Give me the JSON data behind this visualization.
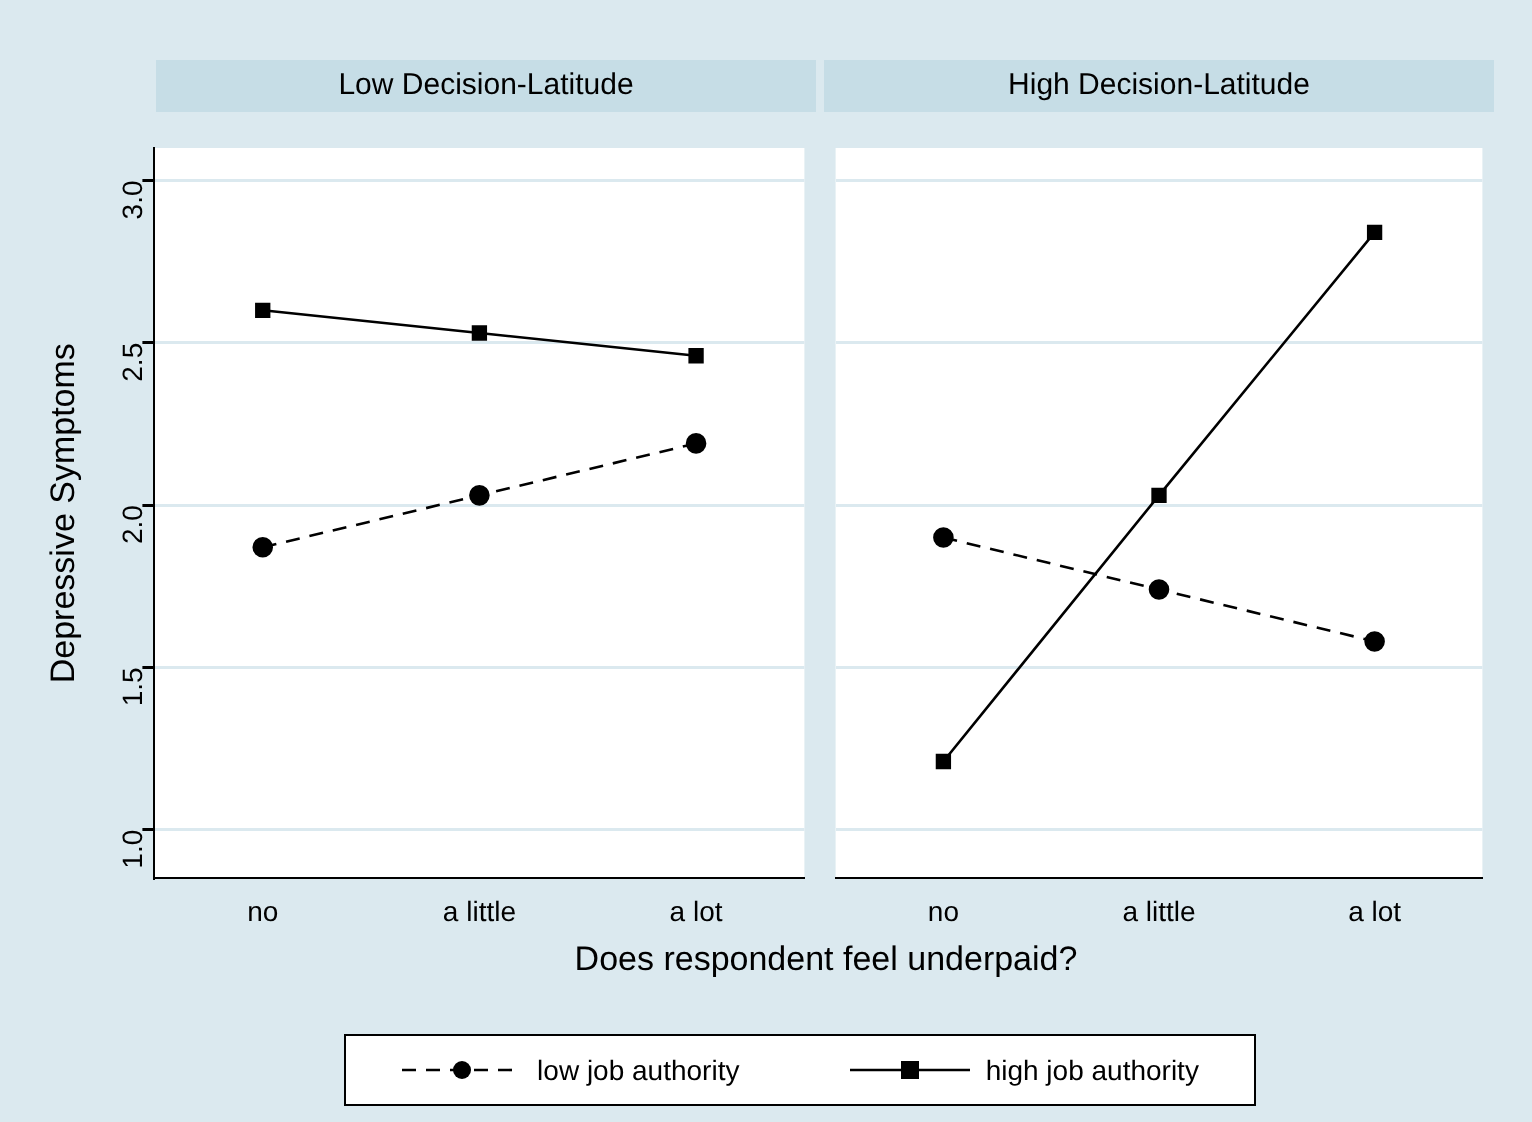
{
  "chart_data": [
    {
      "type": "line",
      "title": "Low Decision-Latitude",
      "xlabel": "Does respondent feel underpaid?",
      "ylabel": "Depressive Symptoms",
      "categories": [
        "no",
        "a little",
        "a lot"
      ],
      "series": [
        {
          "name": "low job authority",
          "color": "#000000",
          "marker": "circle",
          "line_style": "dashed",
          "values": [
            1.87,
            2.03,
            2.19
          ]
        },
        {
          "name": "high job authority",
          "color": "#000000",
          "marker": "square",
          "line_style": "solid",
          "values": [
            2.6,
            2.53,
            2.46
          ]
        }
      ],
      "ylim": [
        0.85,
        3.1
      ],
      "yticks": [
        {
          "value": 1,
          "label": "1.0"
        },
        {
          "value": 1.5,
          "label": "1.5"
        },
        {
          "value": 2,
          "label": "2.0"
        },
        {
          "value": 2.5,
          "label": "2.5"
        },
        {
          "value": 3,
          "label": "3.0"
        }
      ],
      "grid": "y",
      "legend": "bottom"
    },
    {
      "type": "line",
      "title": "High Decision-Latitude",
      "categories": [
        "no",
        "a little",
        "a lot"
      ],
      "series": [
        {
          "color": "#000000",
          "marker": "circle",
          "line_style": "dashed",
          "values": [
            1.9,
            1.74,
            1.58
          ]
        },
        {
          "color": "#000000",
          "marker": "square",
          "line_style": "solid",
          "values": [
            1.21,
            2.03,
            2.84
          ]
        }
      ],
      "ylim": [
        0.85,
        3.1
      ],
      "yticks": [
        1,
        1.5,
        2,
        2.5,
        3
      ],
      "grid": "y",
      "tick_labels": "x"
    }
  ]
}
